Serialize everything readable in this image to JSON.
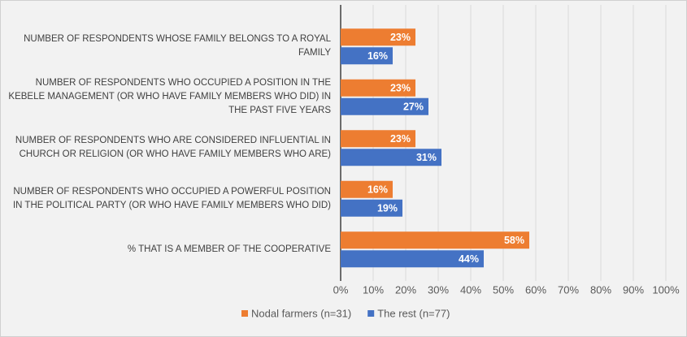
{
  "chart_data": {
    "type": "bar",
    "orientation": "horizontal",
    "categories": [
      "NUMBER OF RESPONDENTS WHOSE FAMILY BELONGS TO A ROYAL FAMILY",
      "NUMBER OF RESPONDENTS WHO OCCUPIED A POSITION IN THE KEBELE MANAGEMENT (OR WHO HAVE FAMILY MEMBERS WHO DID) IN THE PAST FIVE YEARS",
      "NUMBER OF RESPONDENTS WHO ARE CONSIDERED INFLUENTIAL IN CHURCH OR RELIGION (OR WHO HAVE FAMILY MEMBERS WHO ARE)",
      "NUMBER OF RESPONDENTS WHO OCCUPIED A POWERFUL POSITION IN THE POLITICAL PARTY (OR WHO HAVE FAMILY MEMBERS WHO DID)",
      "% THAT IS A MEMBER OF THE COOPERATIVE"
    ],
    "series": [
      {
        "name": "Nodal farmers (n=31)",
        "color": "#ed7d31",
        "values": [
          23,
          23,
          23,
          16,
          58
        ],
        "value_labels": [
          "23%",
          "23%",
          "23%",
          "16%",
          "58%"
        ]
      },
      {
        "name": "The rest (n=77)",
        "color": "#4472c4",
        "values": [
          16,
          27,
          31,
          19,
          44
        ],
        "value_labels": [
          "16%",
          "27%",
          "31%",
          "19%",
          "44%"
        ]
      }
    ],
    "xlim": [
      0,
      100
    ],
    "xticks": [
      {
        "value": 0,
        "label": "0%"
      },
      {
        "value": 10,
        "label": "10%"
      },
      {
        "value": 20,
        "label": "20%"
      },
      {
        "value": 30,
        "label": "30%"
      },
      {
        "value": 40,
        "label": "40%"
      },
      {
        "value": 50,
        "label": "50%"
      },
      {
        "value": 60,
        "label": "60%"
      },
      {
        "value": 70,
        "label": "70%"
      },
      {
        "value": 80,
        "label": "80%"
      },
      {
        "value": 90,
        "label": "90%"
      },
      {
        "value": 100,
        "label": "100%"
      }
    ],
    "grid": true,
    "legend": "bottom"
  }
}
